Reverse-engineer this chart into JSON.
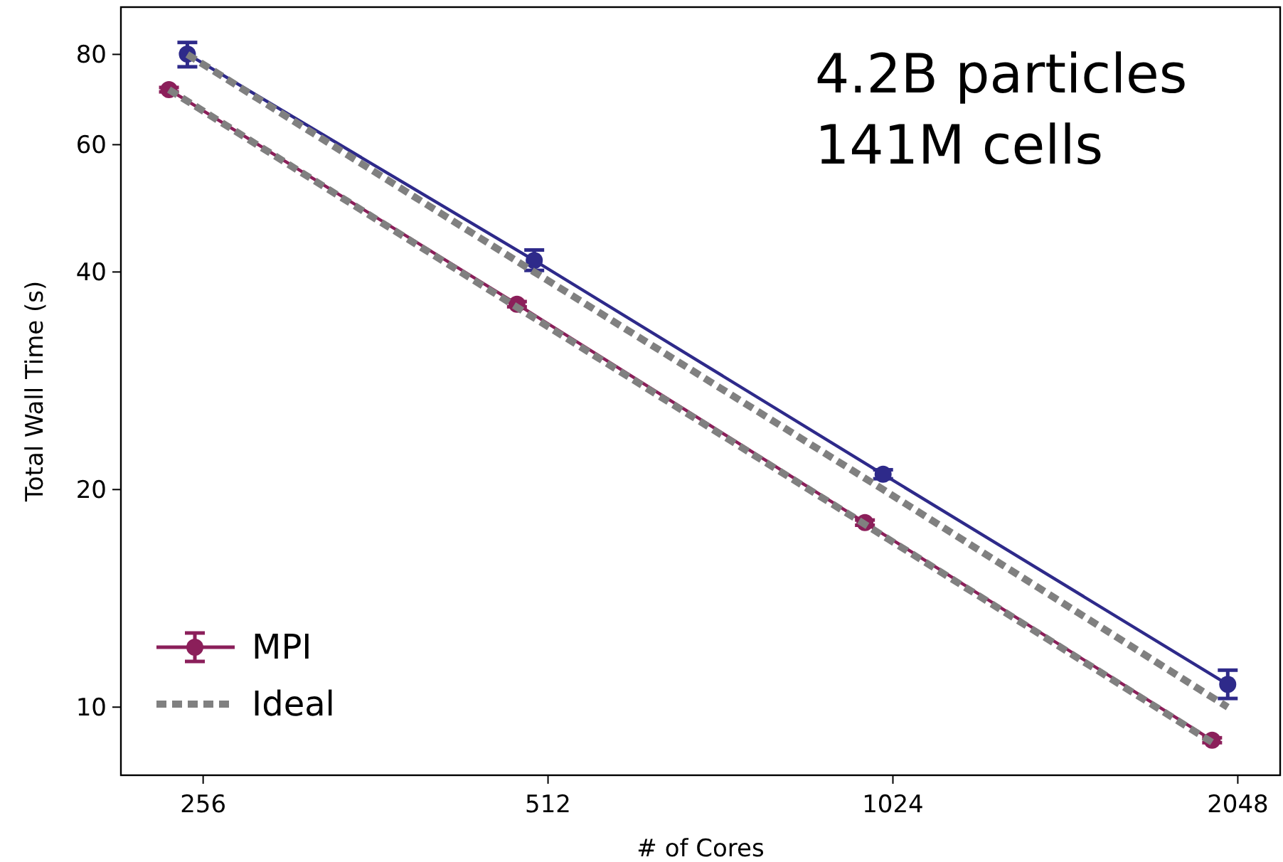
{
  "chart_data": {
    "type": "line",
    "xlabel": "# of Cores",
    "ylabel": "Total Wall Time (s)",
    "log": "xy",
    "grid": false,
    "legend": "bottom left",
    "xlim": [
      217,
      2230
    ],
    "xticks": [
      256,
      512,
      1024,
      2048
    ],
    "ylim": [
      8.05,
      93
    ],
    "yticks": [
      10,
      20,
      40,
      60,
      80
    ],
    "annotations": [
      "4.2B particles",
      "141M cells"
    ],
    "series": [
      {
        "line_style": "solid",
        "color": "#2e2a8a",
        "marker": "circle",
        "x": [
          248,
          498,
          1004,
          2007
        ],
        "values": [
          80.1,
          41.5,
          21.0,
          10.75
        ],
        "errors": [
          [
            76.9,
            83.1
          ],
          [
            40.2,
            42.9
          ],
          [
            20.7,
            21.3
          ],
          [
            10.28,
            11.25
          ]
        ]
      },
      {
        "line_style": "solid",
        "color": "#8b1f5a",
        "marker": "circle",
        "name": "MPI",
        "x": [
          239,
          481,
          968,
          1945
        ],
        "values": [
          71.5,
          36.1,
          18.0,
          9.0
        ],
        "errors": [
          [
            71.0,
            72.0
          ],
          [
            35.8,
            36.4
          ],
          [
            17.85,
            18.15
          ],
          [
            8.93,
            9.07
          ]
        ]
      },
      {
        "line_style": "dashed",
        "color": "#808080",
        "marker": "none",
        "x": [
          239,
          481,
          968,
          1945
        ],
        "values": [
          71.5,
          35.75,
          17.9,
          8.94
        ]
      },
      {
        "line_style": "dashed",
        "color": "#808080",
        "marker": "none",
        "name": "Ideal",
        "x": [
          248,
          498,
          1004,
          2007
        ],
        "values": [
          80,
          40,
          20,
          10
        ]
      }
    ]
  }
}
